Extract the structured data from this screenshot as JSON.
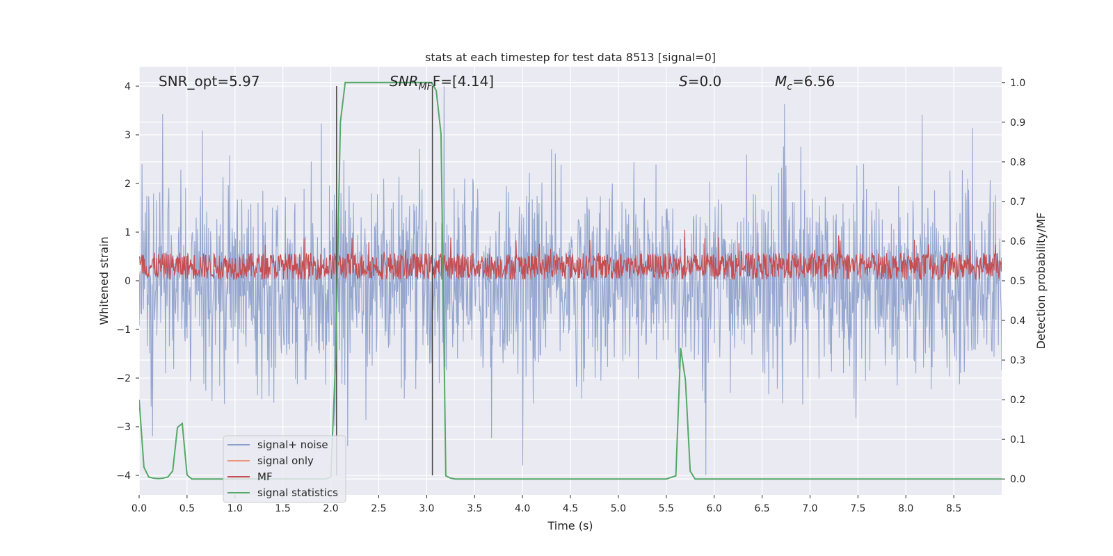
{
  "chart_data": {
    "type": "line",
    "title": "stats at each timestep for test data 8513 [signal=0]",
    "xlabel": "Time (s)",
    "ylabel_left": "Whitened strain",
    "ylabel_right": "Detection probability/MF",
    "xlim": [
      0.0,
      9.0
    ],
    "ylim_left": [
      -4.4,
      4.4
    ],
    "ylim_right": [
      -0.04,
      1.04
    ],
    "xticks": [
      0.0,
      0.5,
      1.0,
      1.5,
      2.0,
      2.5,
      3.0,
      3.5,
      4.0,
      4.5,
      5.0,
      5.5,
      6.0,
      6.5,
      7.0,
      7.5,
      8.0,
      8.5
    ],
    "xtick_labels": [
      "0.0",
      "0.5",
      "1.0",
      "1.5",
      "2.0",
      "2.5",
      "3.0",
      "3.5",
      "4.0",
      "4.5",
      "5.0",
      "5.5",
      "6.0",
      "6.5",
      "7.0",
      "7.5",
      "8.0",
      "8.5"
    ],
    "yticks_left": [
      4,
      3,
      2,
      1,
      0,
      -1,
      -2,
      -3,
      -4
    ],
    "ytick_labels_left": [
      "4",
      "3",
      "2",
      "1",
      "0",
      "−1",
      "−2",
      "−3",
      "−4"
    ],
    "yticks_right": [
      1.0,
      0.9,
      0.8,
      0.7,
      0.6,
      0.5,
      0.4,
      0.3,
      0.2,
      0.1,
      0.0
    ],
    "ytick_labels_right": [
      "1.0",
      "0.9",
      "0.8",
      "0.7",
      "0.6",
      "0.5",
      "0.4",
      "0.3",
      "0.2",
      "0.1",
      "0.0"
    ],
    "annotations": {
      "snr_opt": "SNR_opt=5.97",
      "snr_mf_sym": "SNR",
      "snr_mf_sub": "MF",
      "snr_mf_val": "F=[4.14]",
      "s_sym": "S",
      "s_val": "=0.0",
      "mc_sym": "M",
      "mc_sub": "c",
      "mc_val": "=6.56"
    },
    "vertical_lines": [
      2.06,
      3.06
    ],
    "vertical_line_range": [
      -4,
      4
    ],
    "legend": {
      "location": "lower-left",
      "entries": [
        {
          "label": "signal+ noise",
          "color": "#8da0cb"
        },
        {
          "label": "signal only",
          "color": "#e9967a"
        },
        {
          "label": "MF",
          "color": "#c44e52"
        },
        {
          "label": "signal statistics",
          "color": "#55a868"
        }
      ]
    },
    "series": [
      {
        "name": "signal+ noise",
        "axis": "left",
        "color": "#8da0cb",
        "style": "dense noise, envelope approx ±2.5, peaks to ±4",
        "sigma": 1.0,
        "samples": 1800
      },
      {
        "name": "MF",
        "axis": "left",
        "color": "#c44e52",
        "style": "dense noise around 0.3",
        "center": 0.3,
        "spread": 0.55,
        "samples": 1800
      },
      {
        "name": "signal statistics",
        "axis": "right",
        "color": "#55a868",
        "x": [
          0.0,
          0.05,
          0.1,
          0.15,
          0.2,
          0.25,
          0.3,
          0.35,
          0.4,
          0.45,
          0.5,
          0.55,
          0.6,
          0.65,
          0.7,
          0.8,
          0.9,
          1.0,
          1.5,
          1.9,
          1.95,
          2.0,
          2.05,
          2.1,
          2.15,
          2.3,
          2.5,
          2.8,
          3.0,
          3.05,
          3.1,
          3.15,
          3.2,
          3.25,
          3.3,
          4.0,
          5.0,
          5.5,
          5.6,
          5.65,
          5.7,
          5.75,
          5.8,
          5.85,
          6.0,
          7.0,
          8.0,
          9.0
        ],
        "values": [
          0.2,
          0.03,
          0.005,
          0.002,
          0.001,
          0.002,
          0.005,
          0.02,
          0.13,
          0.14,
          0.01,
          0.0,
          0.0,
          0.0,
          0.0,
          0.0,
          0.0,
          0.0,
          0.0,
          0.0,
          0.0,
          0.005,
          0.3,
          0.9,
          1.0,
          1.0,
          1.0,
          1.0,
          1.0,
          1.0,
          0.98,
          0.87,
          0.008,
          0.002,
          0.0,
          0.0,
          0.0,
          0.0,
          0.008,
          0.33,
          0.25,
          0.02,
          0.0,
          0.0,
          0.0,
          0.0,
          0.0,
          0.0
        ]
      }
    ]
  }
}
